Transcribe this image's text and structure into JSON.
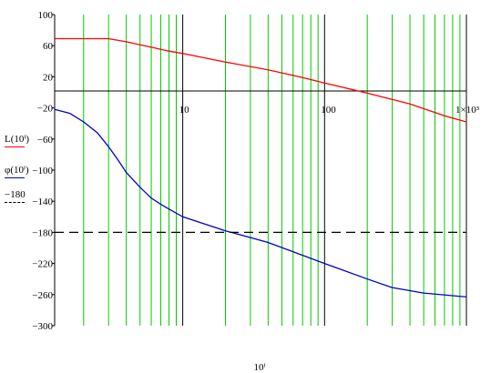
{
  "chart_data": {
    "type": "line",
    "x_scale": "log",
    "xlim": [
      1.25,
      1000
    ],
    "ylim": [
      -300,
      100
    ],
    "x_tick_labels": [
      {
        "x": 10,
        "label": "10"
      },
      {
        "x": 100,
        "label": "100"
      },
      {
        "x": 1000,
        "label": "1×10³"
      }
    ],
    "y_ticks": [
      100,
      60,
      20,
      -20,
      -60,
      -100,
      -140,
      -180,
      -220,
      -260,
      -300
    ],
    "y_tick_labels": [
      "100",
      "60",
      "20",
      "−20",
      "−60",
      "−100",
      "−140",
      "−180",
      "−220",
      "−260",
      "−300"
    ],
    "x_label": "10ⁱ",
    "vertical_markers": [
      2,
      3,
      4,
      5,
      6,
      7,
      8,
      9,
      10,
      20,
      30,
      40,
      50,
      60,
      70,
      80,
      90,
      100,
      200,
      300,
      400,
      500,
      600,
      700,
      800,
      900,
      1000
    ],
    "series": [
      {
        "legend": "L(10ⁱ)",
        "color": "#ff0000",
        "points": [
          [
            1.25,
            69
          ],
          [
            2,
            69
          ],
          [
            3,
            69
          ],
          [
            4,
            65
          ],
          [
            5,
            61
          ],
          [
            6,
            58
          ],
          [
            8,
            53
          ],
          [
            10,
            50
          ],
          [
            20,
            39
          ],
          [
            40,
            29
          ],
          [
            70,
            19
          ],
          [
            100,
            12
          ],
          [
            200,
            -1
          ],
          [
            400,
            -15
          ],
          [
            700,
            -30
          ],
          [
            1000,
            -38
          ]
        ]
      },
      {
        "legend": "φ(10ⁱ)",
        "color": "#0000cc",
        "points": [
          [
            1.25,
            -22
          ],
          [
            1.6,
            -27
          ],
          [
            2,
            -38
          ],
          [
            2.5,
            -52
          ],
          [
            3,
            -70
          ],
          [
            3.5,
            -87
          ],
          [
            4,
            -103
          ],
          [
            5,
            -122
          ],
          [
            6,
            -136
          ],
          [
            7,
            -144
          ],
          [
            8,
            -150
          ],
          [
            10,
            -160
          ],
          [
            20,
            -178
          ],
          [
            40,
            -193
          ],
          [
            100,
            -220
          ],
          [
            200,
            -240
          ],
          [
            300,
            -251
          ],
          [
            500,
            -258
          ],
          [
            1000,
            -263
          ]
        ]
      },
      {
        "legend": "−180",
        "color": "#000000",
        "dashed": true,
        "points": [
          [
            1.25,
            -180
          ],
          [
            1000,
            -180
          ]
        ]
      }
    ]
  },
  "colors": {
    "marker_lines": "#00cc00"
  }
}
